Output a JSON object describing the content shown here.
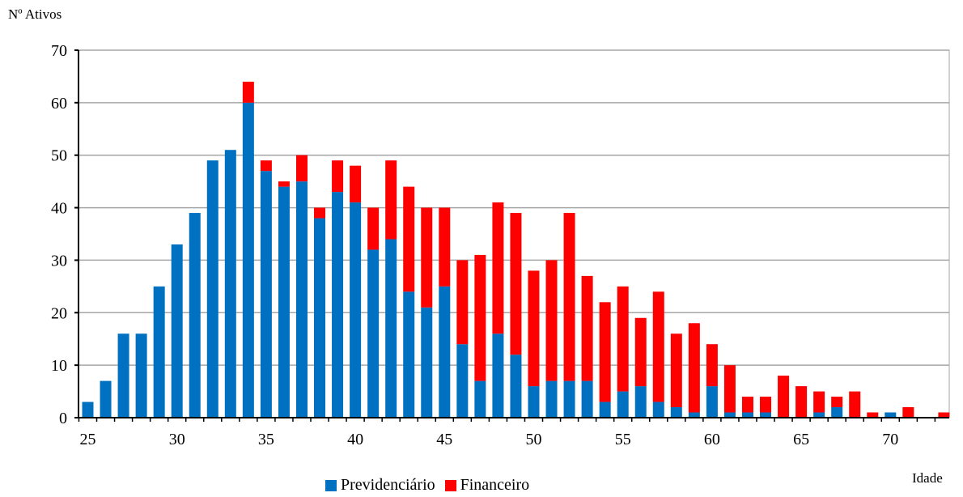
{
  "chart_data": {
    "type": "bar",
    "stacked": true,
    "ylabel": "Nº Ativos",
    "xlabel": "Idade",
    "ylim": [
      0,
      70
    ],
    "yticks": [
      0,
      10,
      20,
      30,
      40,
      50,
      60,
      70
    ],
    "xticks": [
      25,
      30,
      35,
      40,
      45,
      50,
      55,
      60,
      65,
      70
    ],
    "xlim": [
      25,
      73
    ],
    "grid": true,
    "legend_position": "bottom",
    "categories": [
      25,
      26,
      27,
      28,
      29,
      30,
      31,
      32,
      33,
      34,
      35,
      36,
      37,
      38,
      39,
      40,
      41,
      42,
      43,
      44,
      45,
      46,
      47,
      48,
      49,
      50,
      51,
      52,
      53,
      54,
      55,
      56,
      57,
      58,
      59,
      60,
      61,
      62,
      63,
      64,
      65,
      66,
      67,
      68,
      69,
      70,
      71,
      72,
      73
    ],
    "series": [
      {
        "name": "Previdenciário",
        "color": "#0070C0",
        "values": [
          3,
          7,
          16,
          16,
          25,
          33,
          39,
          49,
          51,
          60,
          47,
          44,
          45,
          38,
          43,
          41,
          32,
          34,
          24,
          21,
          25,
          14,
          7,
          16,
          12,
          6,
          7,
          7,
          7,
          3,
          5,
          6,
          3,
          2,
          1,
          6,
          1,
          1,
          1,
          0,
          0,
          1,
          2,
          0,
          0,
          1,
          0,
          0,
          0
        ]
      },
      {
        "name": "Financeiro",
        "color": "#FF0000",
        "values": [
          0,
          0,
          0,
          0,
          0,
          0,
          0,
          0,
          0,
          4,
          2,
          1,
          5,
          2,
          6,
          7,
          8,
          15,
          20,
          19,
          15,
          16,
          24,
          25,
          27,
          22,
          23,
          32,
          20,
          19,
          20,
          13,
          21,
          14,
          17,
          8,
          9,
          3,
          3,
          8,
          6,
          4,
          2,
          5,
          1,
          0,
          2,
          0,
          1
        ]
      }
    ]
  }
}
